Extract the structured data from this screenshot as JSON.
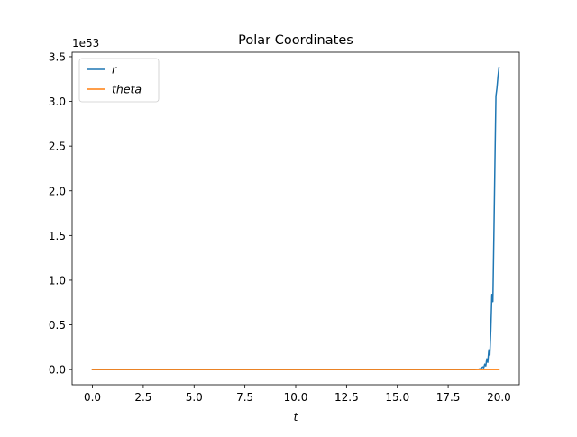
{
  "chart_data": {
    "type": "line",
    "title": "Polar Coordinates",
    "xlabel": "t",
    "ylabel": "",
    "y_offset_label": "1e53",
    "xlim": [
      -1.0,
      21.0
    ],
    "ylim": [
      -0.17,
      3.55
    ],
    "x_ticks": [
      0.0,
      2.5,
      5.0,
      7.5,
      10.0,
      12.5,
      15.0,
      17.5,
      20.0
    ],
    "x_tick_labels": [
      "0.0",
      "2.5",
      "5.0",
      "7.5",
      "10.0",
      "12.5",
      "15.0",
      "17.5",
      "20.0"
    ],
    "y_ticks": [
      0.0,
      0.5,
      1.0,
      1.5,
      2.0,
      2.5,
      3.0,
      3.5
    ],
    "y_tick_labels": [
      "0.0",
      "0.5",
      "1.0",
      "1.5",
      "2.0",
      "2.5",
      "3.0",
      "3.5"
    ],
    "grid": false,
    "legend_position": "top-left",
    "series": [
      {
        "name": "r",
        "color": "#1f77b4",
        "x": [
          0.0,
          18.8,
          19.0,
          19.1,
          19.2,
          19.25,
          19.3,
          19.35,
          19.4,
          19.45,
          19.5,
          19.55,
          19.6,
          19.65,
          19.7,
          19.75,
          19.8,
          19.85,
          19.9,
          19.95,
          20.0
        ],
        "y": [
          0.0,
          0.0,
          0.005,
          0.01,
          0.03,
          0.02,
          0.06,
          0.04,
          0.12,
          0.08,
          0.22,
          0.16,
          0.45,
          0.84,
          0.76,
          1.5,
          2.3,
          3.06,
          3.15,
          3.28,
          3.38
        ]
      },
      {
        "name": "theta",
        "color": "#ff7f0e",
        "x": [
          0.0,
          20.0
        ],
        "y": [
          0.0,
          0.0
        ]
      }
    ]
  }
}
